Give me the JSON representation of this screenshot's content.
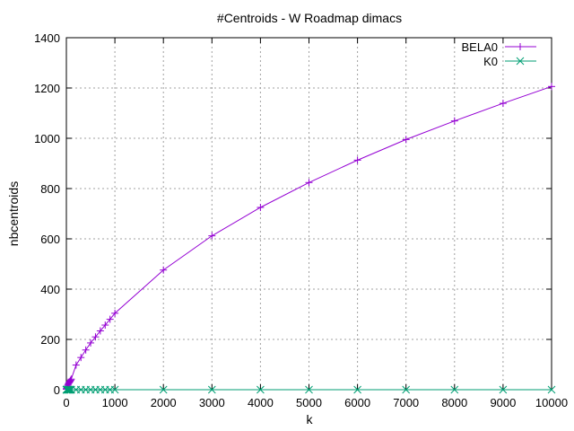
{
  "chart_data": {
    "type": "line",
    "title": "#Centroids - W Roadmap dimacs",
    "xlabel": "k",
    "ylabel": "nbcentroids",
    "xlim": [
      0,
      10000
    ],
    "ylim": [
      0,
      1400
    ],
    "xticks": [
      "0",
      "1000",
      "2000",
      "3000",
      "4000",
      "5000",
      "6000",
      "7000",
      "8000",
      "9000",
      "10000"
    ],
    "yticks": [
      "0",
      "200",
      "400",
      "600",
      "800",
      "1000",
      "1200",
      "1400"
    ],
    "grid": true,
    "legend_position": "top-right",
    "series": [
      {
        "name": "BELA0",
        "color": "#9400d3",
        "marker": "plus",
        "x": [
          1,
          2,
          5,
          10,
          20,
          30,
          40,
          50,
          60,
          70,
          80,
          90,
          100,
          200,
          300,
          400,
          500,
          600,
          700,
          800,
          900,
          1000,
          2000,
          3000,
          4000,
          5000,
          6000,
          7000,
          8000,
          9000,
          10000
        ],
        "y": [
          2,
          3,
          5,
          10,
          13,
          18,
          22,
          26,
          29,
          32,
          35,
          38,
          42,
          98,
          128,
          158,
          186,
          210,
          234,
          257,
          280,
          304,
          476,
          612,
          725,
          824,
          913,
          995,
          1069,
          1139,
          1206
        ]
      },
      {
        "name": "K0",
        "color": "#009e73",
        "marker": "cross",
        "x": [
          1,
          2,
          5,
          10,
          20,
          30,
          40,
          50,
          60,
          70,
          80,
          90,
          100,
          200,
          300,
          400,
          500,
          600,
          700,
          800,
          900,
          1000,
          2000,
          3000,
          4000,
          5000,
          6000,
          7000,
          8000,
          9000,
          10000
        ],
        "y": [
          0,
          0,
          0,
          0,
          0,
          0,
          0,
          0,
          0,
          0,
          0,
          0,
          0,
          0,
          0,
          0,
          0,
          0,
          0,
          0,
          0,
          0,
          0,
          0,
          0,
          0,
          0,
          0,
          0,
          0,
          0
        ]
      }
    ]
  }
}
